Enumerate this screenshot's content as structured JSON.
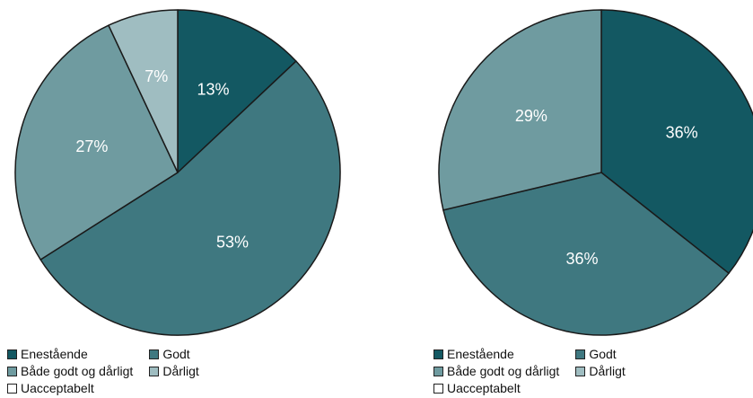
{
  "colors": {
    "Enestående": "#135862",
    "Godt": "#3f7880",
    "Både godt og dårligt": "#6f9ba0",
    "Dårligt": "#9fbdc1",
    "Uacceptabelt": "#ffffff"
  },
  "chart_data": [
    {
      "type": "pie",
      "categories": [
        "Enestående",
        "Godt",
        "Både godt og dårligt",
        "Dårligt",
        "Uacceptabelt"
      ],
      "values": [
        13,
        53,
        27,
        7,
        0
      ],
      "data_labels": [
        "13%",
        "53%",
        "27%",
        "7%",
        ""
      ],
      "legend_placement": "bottom"
    },
    {
      "type": "pie",
      "categories": [
        "Enestående",
        "Godt",
        "Både godt og dårligt",
        "Dårligt",
        "Uacceptabelt"
      ],
      "values": [
        36,
        36,
        29,
        0,
        0
      ],
      "data_labels": [
        "36%",
        "36%",
        "29%",
        "",
        ""
      ],
      "legend_placement": "bottom"
    }
  ]
}
